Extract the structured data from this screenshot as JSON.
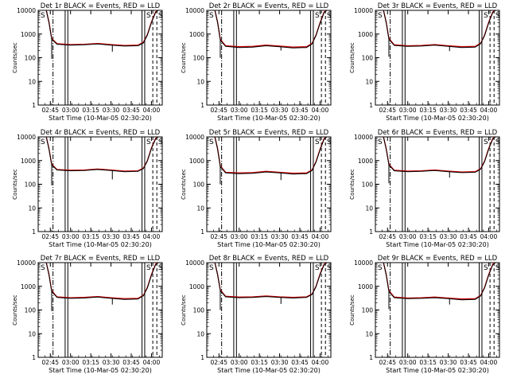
{
  "colors": {
    "events": "#000000",
    "lld": "#cc0000",
    "background": "#ffffff"
  },
  "chart_data": [
    {
      "type": "line",
      "title": "Det 1r BLACK = Events, RED = LLD",
      "xlabel": "Start Time (10-Mar-05 02:30:20)",
      "ylabel": "Counts/sec",
      "yscale": "log",
      "ylim": [
        1,
        10000
      ],
      "x_ticks": [
        "02:45",
        "03:00",
        "03:15",
        "03:30",
        "03:45",
        "04:00"
      ],
      "y_ticks": [
        "1",
        "10",
        "100",
        "1000",
        "10000"
      ],
      "markers": [
        "S",
        "S",
        "S"
      ],
      "dips": [
        {
          "time": "02:46",
          "value": 90
        },
        {
          "time": "03:31",
          "value": 180
        }
      ],
      "series": [
        {
          "name": "Events",
          "color": "#000000",
          "x": [
            "02:42",
            "02:44",
            "02:46",
            "02:50",
            "03:00",
            "03:10",
            "03:20",
            "03:30",
            "03:40",
            "03:50",
            "03:54",
            "03:57",
            "04:00",
            "04:03",
            "04:05"
          ],
          "y": [
            10000,
            3000,
            600,
            370,
            340,
            350,
            380,
            340,
            310,
            320,
            420,
            900,
            3000,
            8000,
            10000
          ]
        },
        {
          "name": "LLD",
          "color": "#cc0000",
          "x": [
            "02:42",
            "02:44",
            "02:46",
            "02:50",
            "03:00",
            "03:10",
            "03:20",
            "03:30",
            "03:40",
            "03:50",
            "03:54",
            "03:57",
            "04:00",
            "04:03",
            "04:05"
          ],
          "y": [
            10000,
            3200,
            650,
            390,
            360,
            370,
            400,
            360,
            330,
            340,
            450,
            950,
            3200,
            8500,
            10000
          ]
        }
      ]
    },
    {
      "type": "line",
      "title": "Det 2r BLACK = Events, RED = LLD",
      "xlabel": "Start Time (10-Mar-05 02:30:20)",
      "ylabel": "Counts/sec",
      "yscale": "log",
      "ylim": [
        1,
        10000
      ],
      "x_ticks": [
        "02:45",
        "03:00",
        "03:15",
        "03:30",
        "03:45",
        "04:00"
      ],
      "y_ticks": [
        "1",
        "10",
        "100",
        "1000",
        "10000"
      ],
      "markers": [
        "S",
        "S",
        "S"
      ],
      "dips": [
        {
          "time": "02:46",
          "value": 100
        },
        {
          "time": "03:31",
          "value": 200
        }
      ],
      "series": [
        {
          "name": "Events",
          "color": "#000000",
          "x": [
            "02:42",
            "02:44",
            "02:46",
            "02:50",
            "03:00",
            "03:10",
            "03:20",
            "03:30",
            "03:40",
            "03:50",
            "03:54",
            "03:57",
            "04:00",
            "04:03",
            "04:05"
          ],
          "y": [
            10000,
            3000,
            550,
            300,
            270,
            280,
            320,
            290,
            260,
            270,
            380,
            850,
            2800,
            8000,
            10000
          ]
        },
        {
          "name": "LLD",
          "color": "#cc0000",
          "x": [
            "02:42",
            "02:44",
            "02:46",
            "02:50",
            "03:00",
            "03:10",
            "03:20",
            "03:30",
            "03:40",
            "03:50",
            "03:54",
            "03:57",
            "04:00",
            "04:03",
            "04:05"
          ],
          "y": [
            10000,
            3200,
            600,
            320,
            290,
            300,
            340,
            310,
            280,
            290,
            400,
            900,
            3000,
            8500,
            10000
          ]
        }
      ]
    },
    {
      "type": "line",
      "title": "Det 3r BLACK = Events, RED = LLD",
      "xlabel": "Start Time (10-Mar-05 02:30:20)",
      "ylabel": "Counts/sec",
      "yscale": "log",
      "ylim": [
        1,
        10000
      ],
      "x_ticks": [
        "02:45",
        "03:00",
        "03:15",
        "03:30",
        "03:45",
        "04:00"
      ],
      "y_ticks": [
        "1",
        "10",
        "100",
        "1000",
        "10000"
      ],
      "markers": [
        "S",
        "S",
        "S"
      ],
      "dips": [
        {
          "time": "02:46",
          "value": 110
        },
        {
          "time": "03:31",
          "value": 190
        }
      ],
      "series": [
        {
          "name": "Events",
          "color": "#000000",
          "x": [
            "02:42",
            "02:44",
            "02:46",
            "02:50",
            "03:00",
            "03:10",
            "03:20",
            "03:30",
            "03:40",
            "03:50",
            "03:54",
            "03:57",
            "04:00",
            "04:03",
            "04:05"
          ],
          "y": [
            10000,
            3000,
            600,
            330,
            300,
            310,
            340,
            300,
            270,
            280,
            390,
            850,
            2900,
            8000,
            10000
          ]
        },
        {
          "name": "LLD",
          "color": "#cc0000",
          "x": [
            "02:42",
            "02:44",
            "02:46",
            "02:50",
            "03:00",
            "03:10",
            "03:20",
            "03:30",
            "03:40",
            "03:50",
            "03:54",
            "03:57",
            "04:00",
            "04:03",
            "04:05"
          ],
          "y": [
            10000,
            3200,
            650,
            350,
            320,
            330,
            360,
            320,
            290,
            300,
            410,
            900,
            3100,
            8500,
            10000
          ]
        }
      ]
    },
    {
      "type": "line",
      "title": "Det 4r BLACK = Events, RED = LLD",
      "xlabel": "Start Time (10-Mar-05 02:30:20)",
      "ylabel": "Counts/sec",
      "yscale": "log",
      "ylim": [
        1,
        10000
      ],
      "x_ticks": [
        "02:45",
        "03:00",
        "03:15",
        "03:30",
        "03:45",
        "04:00"
      ],
      "y_ticks": [
        "1",
        "10",
        "100",
        "1000",
        "10000"
      ],
      "markers": [
        "S",
        "S",
        "S"
      ],
      "dips": [
        {
          "time": "02:46",
          "value": 90
        },
        {
          "time": "03:31",
          "value": 160
        }
      ],
      "series": [
        {
          "name": "Events",
          "color": "#000000",
          "x": [
            "02:42",
            "02:44",
            "02:46",
            "02:50",
            "03:00",
            "03:10",
            "03:20",
            "03:30",
            "03:40",
            "03:50",
            "03:54",
            "03:57",
            "04:00",
            "04:03",
            "04:05"
          ],
          "y": [
            10000,
            3000,
            650,
            400,
            370,
            380,
            420,
            380,
            340,
            350,
            460,
            950,
            3200,
            8000,
            10000
          ]
        },
        {
          "name": "LLD",
          "color": "#cc0000",
          "x": [
            "02:42",
            "02:44",
            "02:46",
            "02:50",
            "03:00",
            "03:10",
            "03:20",
            "03:30",
            "03:40",
            "03:50",
            "03:54",
            "03:57",
            "04:00",
            "04:03",
            "04:05"
          ],
          "y": [
            10000,
            3200,
            700,
            420,
            390,
            400,
            440,
            400,
            360,
            370,
            480,
            1000,
            3400,
            8500,
            10000
          ]
        }
      ]
    },
    {
      "type": "line",
      "title": "Det 5r BLACK = Events, RED = LLD",
      "xlabel": "Start Time (10-Mar-05 02:30:20)",
      "ylabel": "Counts/sec",
      "yscale": "log",
      "ylim": [
        1,
        10000
      ],
      "x_ticks": [
        "02:45",
        "03:00",
        "03:15",
        "03:30",
        "03:45",
        "04:00"
      ],
      "y_ticks": [
        "1",
        "10",
        "100",
        "1000",
        "10000"
      ],
      "markers": [
        "S",
        "S",
        "S"
      ],
      "dips": [
        {
          "time": "02:46",
          "value": 100
        },
        {
          "time": "03:31",
          "value": 150
        }
      ],
      "series": [
        {
          "name": "Events",
          "color": "#000000",
          "x": [
            "02:42",
            "02:44",
            "02:46",
            "02:50",
            "03:00",
            "03:10",
            "03:20",
            "03:30",
            "03:40",
            "03:50",
            "03:54",
            "03:57",
            "04:00",
            "04:03",
            "04:05"
          ],
          "y": [
            10000,
            3000,
            550,
            300,
            280,
            290,
            330,
            300,
            270,
            280,
            380,
            850,
            2800,
            8000,
            10000
          ]
        },
        {
          "name": "LLD",
          "color": "#cc0000",
          "x": [
            "02:42",
            "02:44",
            "02:46",
            "02:50",
            "03:00",
            "03:10",
            "03:20",
            "03:30",
            "03:40",
            "03:50",
            "03:54",
            "03:57",
            "04:00",
            "04:03",
            "04:05"
          ],
          "y": [
            10000,
            3200,
            600,
            320,
            300,
            310,
            350,
            320,
            290,
            300,
            400,
            900,
            3000,
            8500,
            10000
          ]
        }
      ]
    },
    {
      "type": "line",
      "title": "Det 6r BLACK = Events, RED = LLD",
      "xlabel": "Start Time (10-Mar-05 02:30:20)",
      "ylabel": "Counts/sec",
      "yscale": "log",
      "ylim": [
        1,
        10000
      ],
      "x_ticks": [
        "02:45",
        "03:00",
        "03:15",
        "03:30",
        "03:45",
        "04:00"
      ],
      "y_ticks": [
        "1",
        "10",
        "100",
        "1000",
        "10000"
      ],
      "markers": [
        "S",
        "S",
        "S"
      ],
      "dips": [
        {
          "time": "02:46",
          "value": 110
        },
        {
          "time": "03:31",
          "value": 190
        }
      ],
      "series": [
        {
          "name": "Events",
          "color": "#000000",
          "x": [
            "02:42",
            "02:44",
            "02:46",
            "02:50",
            "03:00",
            "03:10",
            "03:20",
            "03:30",
            "03:40",
            "03:50",
            "03:54",
            "03:57",
            "04:00",
            "04:03",
            "04:05"
          ],
          "y": [
            10000,
            3000,
            650,
            370,
            340,
            350,
            380,
            340,
            310,
            320,
            430,
            900,
            3000,
            8000,
            10000
          ]
        },
        {
          "name": "LLD",
          "color": "#cc0000",
          "x": [
            "02:42",
            "02:44",
            "02:46",
            "02:50",
            "03:00",
            "03:10",
            "03:20",
            "03:30",
            "03:40",
            "03:50",
            "03:54",
            "03:57",
            "04:00",
            "04:03",
            "04:05"
          ],
          "y": [
            10000,
            3200,
            700,
            390,
            360,
            370,
            400,
            360,
            330,
            340,
            450,
            950,
            3200,
            8500,
            10000
          ]
        }
      ]
    },
    {
      "type": "line",
      "title": "Det 7r BLACK = Events, RED = LLD",
      "xlabel": "Start Time (10-Mar-05 02:30:20)",
      "ylabel": "Counts/sec",
      "yscale": "log",
      "ylim": [
        1,
        10000
      ],
      "x_ticks": [
        "02:45",
        "03:00",
        "03:15",
        "03:30",
        "03:45",
        "04:00"
      ],
      "y_ticks": [
        "1",
        "10",
        "100",
        "1000",
        "10000"
      ],
      "markers": [
        "S",
        "S",
        "S"
      ],
      "dips": [
        {
          "time": "02:46",
          "value": 90
        },
        {
          "time": "03:31",
          "value": 170
        }
      ],
      "series": [
        {
          "name": "Events",
          "color": "#000000",
          "x": [
            "02:42",
            "02:44",
            "02:46",
            "02:50",
            "03:00",
            "03:10",
            "03:20",
            "03:30",
            "03:40",
            "03:50",
            "03:54",
            "03:57",
            "04:00",
            "04:03",
            "04:05"
          ],
          "y": [
            10000,
            3000,
            600,
            340,
            310,
            320,
            350,
            310,
            280,
            290,
            400,
            850,
            2900,
            8000,
            10000
          ]
        },
        {
          "name": "LLD",
          "color": "#cc0000",
          "x": [
            "02:42",
            "02:44",
            "02:46",
            "02:50",
            "03:00",
            "03:10",
            "03:20",
            "03:30",
            "03:40",
            "03:50",
            "03:54",
            "03:57",
            "04:00",
            "04:03",
            "04:05"
          ],
          "y": [
            10000,
            3200,
            650,
            360,
            330,
            340,
            370,
            330,
            300,
            310,
            420,
            900,
            3100,
            8500,
            10000
          ]
        }
      ]
    },
    {
      "type": "line",
      "title": "Det 8r BLACK = Events, RED = LLD",
      "xlabel": "Start Time (10-Mar-05 02:30:20)",
      "ylabel": "Counts/sec",
      "yscale": "log",
      "ylim": [
        1,
        10000
      ],
      "x_ticks": [
        "02:45",
        "03:00",
        "03:15",
        "03:30",
        "03:45",
        "04:00"
      ],
      "y_ticks": [
        "1",
        "10",
        "100",
        "1000",
        "10000"
      ],
      "markers": [
        "S",
        "S",
        "S"
      ],
      "dips": [
        {
          "time": "02:46",
          "value": 100
        },
        {
          "time": "03:31",
          "value": 180
        }
      ],
      "series": [
        {
          "name": "Events",
          "color": "#000000",
          "x": [
            "02:42",
            "02:44",
            "02:46",
            "02:50",
            "03:00",
            "03:10",
            "03:20",
            "03:30",
            "03:40",
            "03:50",
            "03:54",
            "03:57",
            "04:00",
            "04:03",
            "04:05"
          ],
          "y": [
            10000,
            3000,
            650,
            360,
            330,
            340,
            370,
            340,
            320,
            340,
            450,
            950,
            3100,
            8000,
            10000
          ]
        },
        {
          "name": "LLD",
          "color": "#cc0000",
          "x": [
            "02:42",
            "02:44",
            "02:46",
            "02:50",
            "03:00",
            "03:10",
            "03:20",
            "03:30",
            "03:40",
            "03:50",
            "03:54",
            "03:57",
            "04:00",
            "04:03",
            "04:05"
          ],
          "y": [
            10000,
            3200,
            700,
            380,
            350,
            360,
            390,
            360,
            340,
            360,
            470,
            1000,
            3300,
            8500,
            10000
          ]
        }
      ]
    },
    {
      "type": "line",
      "title": "Det 9r BLACK = Events, RED = LLD",
      "xlabel": "Start Time (10-Mar-05 02:30:20)",
      "ylabel": "Counts/sec",
      "yscale": "log",
      "ylim": [
        1,
        10000
      ],
      "x_ticks": [
        "02:45",
        "03:00",
        "03:15",
        "03:30",
        "03:45",
        "04:00"
      ],
      "y_ticks": [
        "1",
        "10",
        "100",
        "1000",
        "10000"
      ],
      "markers": [
        "S",
        "S",
        "S"
      ],
      "dips": [
        {
          "time": "02:46",
          "value": 110
        },
        {
          "time": "03:31",
          "value": 170
        }
      ],
      "series": [
        {
          "name": "Events",
          "color": "#000000",
          "x": [
            "02:42",
            "02:44",
            "02:46",
            "02:50",
            "03:00",
            "03:10",
            "03:20",
            "03:30",
            "03:40",
            "03:50",
            "03:54",
            "03:57",
            "04:00",
            "04:03",
            "04:05"
          ],
          "y": [
            10000,
            3000,
            600,
            330,
            300,
            310,
            330,
            300,
            270,
            280,
            390,
            850,
            2900,
            8000,
            10000
          ]
        },
        {
          "name": "LLD",
          "color": "#cc0000",
          "x": [
            "02:42",
            "02:44",
            "02:46",
            "02:50",
            "03:00",
            "03:10",
            "03:20",
            "03:30",
            "03:40",
            "03:50",
            "03:54",
            "03:57",
            "04:00",
            "04:03",
            "04:05"
          ],
          "y": [
            10000,
            3200,
            650,
            350,
            320,
            330,
            350,
            320,
            290,
            300,
            410,
            900,
            3100,
            8500,
            10000
          ]
        }
      ]
    }
  ]
}
